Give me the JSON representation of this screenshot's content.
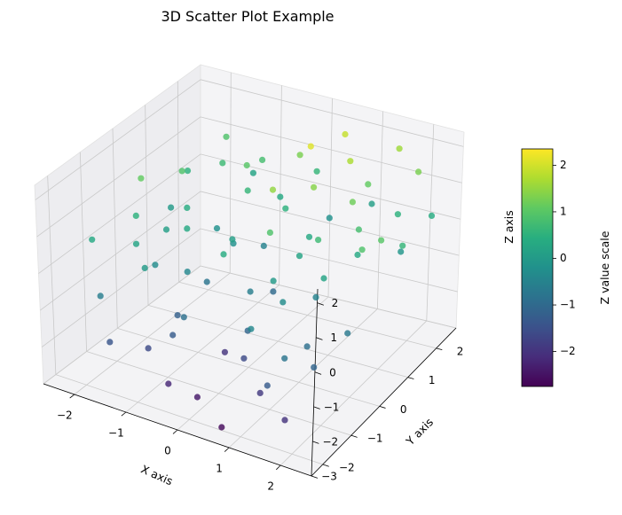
{
  "chart_data": {
    "type": "scatter",
    "title": "3D Scatter Plot Example",
    "xlabel": "X axis",
    "ylabel": "Y axis",
    "zlabel": "Z axis",
    "xlim": [
      -2.6,
      2.6
    ],
    "ylim": [
      -2.4,
      2.7
    ],
    "zlim": [
      -3.0,
      2.4
    ],
    "x_ticks": [
      "−2",
      "−1",
      "0",
      "1",
      "2"
    ],
    "y_ticks": [
      "−2",
      "−1",
      "0",
      "1",
      "2"
    ],
    "z_ticks": [
      "−3",
      "−2",
      "−1",
      "0",
      "1",
      "2"
    ],
    "colorbar": {
      "label": "Z value scale",
      "range": [
        -2.75,
        2.35
      ],
      "ticks": [
        "−2",
        "−1",
        "0",
        "1",
        "2"
      ],
      "colormap": "viridis"
    },
    "points": [
      {
        "x": -2.2,
        "y": 0.2,
        "z": 1.1
      },
      {
        "x": -2.0,
        "y": -0.3,
        "z": 0.5
      },
      {
        "x": -1.9,
        "y": 1.0,
        "z": 0.9
      },
      {
        "x": -1.7,
        "y": -0.8,
        "z": 0.2
      },
      {
        "x": -1.8,
        "y": -1.8,
        "z": -0.6
      },
      {
        "x": -1.5,
        "y": 0.5,
        "z": 0.4
      },
      {
        "x": -1.6,
        "y": 1.8,
        "z": 0.7
      },
      {
        "x": -1.3,
        "y": -1.2,
        "z": 0.0
      },
      {
        "x": -1.2,
        "y": 0.0,
        "z": 0.3
      },
      {
        "x": -1.0,
        "y": 2.1,
        "z": 0.8
      },
      {
        "x": -1.4,
        "y": -2.2,
        "z": -1.4
      },
      {
        "x": -0.9,
        "y": -0.5,
        "z": -0.4
      },
      {
        "x": -0.8,
        "y": 1.3,
        "z": 0.6
      },
      {
        "x": -1.1,
        "y": 0.8,
        "z": -0.2
      },
      {
        "x": -0.6,
        "y": -1.5,
        "z": -1.3
      },
      {
        "x": -0.5,
        "y": 0.3,
        "z": 0.1
      },
      {
        "x": -0.7,
        "y": -0.2,
        "z": -0.8
      },
      {
        "x": -0.3,
        "y": 1.0,
        "z": -0.5
      },
      {
        "x": -0.2,
        "y": 2.0,
        "z": 1.3
      },
      {
        "x": 0.0,
        "y": -0.8,
        "z": -2.0
      },
      {
        "x": 0.1,
        "y": 0.6,
        "z": 1.5
      },
      {
        "x": -0.4,
        "y": -2.0,
        "z": -2.2
      },
      {
        "x": 0.3,
        "y": 1.5,
        "z": 2.1
      },
      {
        "x": 0.2,
        "y": -0.3,
        "z": -0.6
      },
      {
        "x": 0.4,
        "y": 0.0,
        "z": 0.9
      },
      {
        "x": 0.5,
        "y": 2.3,
        "z": 1.9
      },
      {
        "x": 0.6,
        "y": -1.2,
        "z": -1.6
      },
      {
        "x": 0.7,
        "y": 0.8,
        "z": 0.3
      },
      {
        "x": 0.8,
        "y": -2.3,
        "z": -2.6
      },
      {
        "x": 0.9,
        "y": 1.8,
        "z": 1.7
      },
      {
        "x": 1.0,
        "y": -0.6,
        "z": -0.3
      },
      {
        "x": 1.1,
        "y": 0.4,
        "z": 0.7
      },
      {
        "x": 1.2,
        "y": -1.7,
        "z": -1.9
      },
      {
        "x": 1.3,
        "y": 1.2,
        "z": 1.2
      },
      {
        "x": 1.4,
        "y": 2.6,
        "z": 1.6
      },
      {
        "x": 1.5,
        "y": -0.1,
        "z": 0.2
      },
      {
        "x": 1.6,
        "y": 0.9,
        "z": 0.8
      },
      {
        "x": 1.7,
        "y": -1.0,
        "z": -0.9
      },
      {
        "x": 1.8,
        "y": 1.9,
        "z": 0.5
      },
      {
        "x": 1.9,
        "y": -2.1,
        "z": -2.0
      },
      {
        "x": 2.0,
        "y": 0.3,
        "z": 0.9
      },
      {
        "x": 2.1,
        "y": 1.5,
        "z": -0.1
      },
      {
        "x": 2.2,
        "y": -0.5,
        "z": -0.7
      },
      {
        "x": 2.3,
        "y": 2.2,
        "z": 0.4
      },
      {
        "x": 1.0,
        "y": 2.4,
        "z": 0.1
      },
      {
        "x": -0.1,
        "y": 2.4,
        "z": 0.6
      },
      {
        "x": -1.3,
        "y": 2.3,
        "z": 0.2
      },
      {
        "x": -2.1,
        "y": 1.5,
        "z": 0.5
      },
      {
        "x": 0.9,
        "y": -1.5,
        "z": -0.4
      },
      {
        "x": -0.8,
        "y": -1.0,
        "z": -1.2
      },
      {
        "x": 0.3,
        "y": 0.3,
        "z": -1.0
      },
      {
        "x": 1.6,
        "y": -1.6,
        "z": -0.8
      },
      {
        "x": 2.4,
        "y": 1.0,
        "z": 0.6
      },
      {
        "x": -2.3,
        "y": -1.2,
        "z": 0.3
      },
      {
        "x": -1.9,
        "y": 2.4,
        "z": 0.9
      },
      {
        "x": 0.6,
        "y": 1.1,
        "z": 1.4
      },
      {
        "x": -0.6,
        "y": 0.5,
        "z": -0.2
      },
      {
        "x": 0.1,
        "y": -1.9,
        "z": -2.4
      },
      {
        "x": 1.3,
        "y": 0.0,
        "z": -0.5
      },
      {
        "x": 2.0,
        "y": -1.3,
        "z": -1.1
      },
      {
        "x": -1.6,
        "y": 0.0,
        "z": 0.1
      },
      {
        "x": -0.2,
        "y": -0.5,
        "z": 0.4
      },
      {
        "x": 0.8,
        "y": 0.3,
        "z": 0.2
      },
      {
        "x": -1.0,
        "y": 1.6,
        "z": 1.0
      },
      {
        "x": 1.2,
        "y": 1.9,
        "z": 1.1
      },
      {
        "x": -0.4,
        "y": 1.7,
        "z": 0.3
      },
      {
        "x": 0.5,
        "y": -0.9,
        "z": -1.1
      },
      {
        "x": 1.7,
        "y": 0.7,
        "z": 0.3
      },
      {
        "x": -1.4,
        "y": -0.7,
        "z": -0.3
      },
      {
        "x": 0.0,
        "y": 1.2,
        "z": 0.5
      },
      {
        "x": 2.2,
        "y": 0.6,
        "z": 1.0
      },
      {
        "x": -0.9,
        "y": -1.8,
        "z": -1.6
      },
      {
        "x": 0.4,
        "y": 2.0,
        "z": -0.2
      },
      {
        "x": 1.5,
        "y": -2.0,
        "z": -1.3
      },
      {
        "x": -2.0,
        "y": 0.8,
        "z": 0.0
      },
      {
        "x": 0.7,
        "y": -0.4,
        "z": 0.0
      },
      {
        "x": -0.5,
        "y": -1.3,
        "z": -0.9
      },
      {
        "x": 1.9,
        "y": 2.4,
        "z": 1.3
      }
    ]
  }
}
